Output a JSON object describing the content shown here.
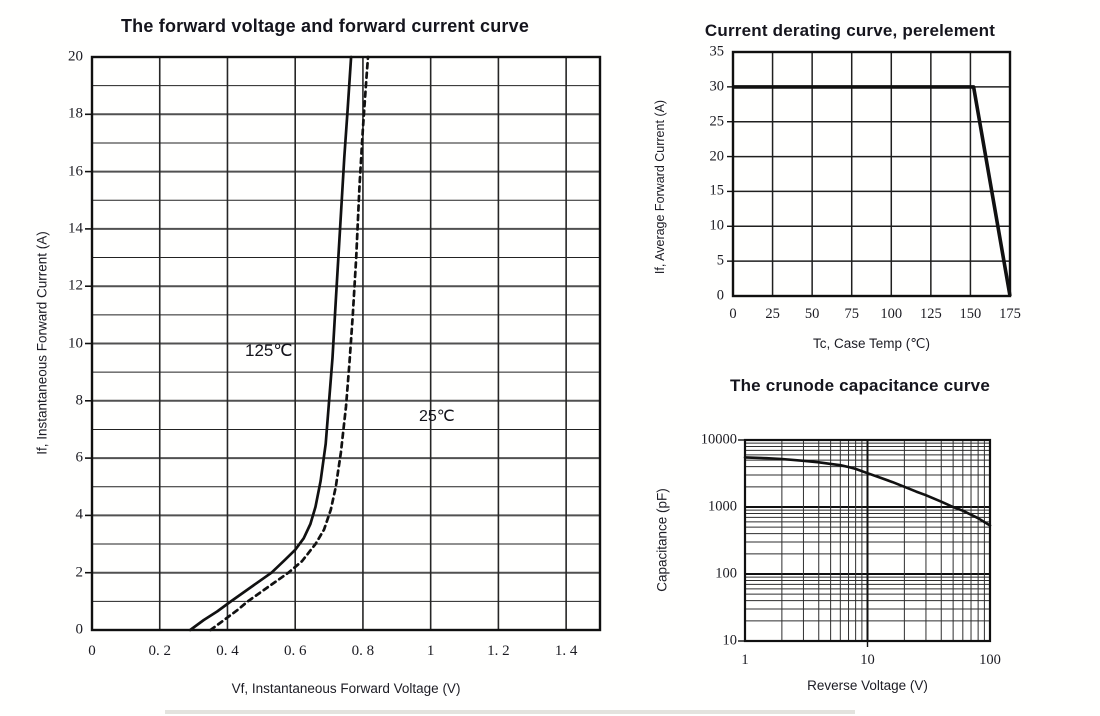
{
  "page": {
    "background": "#ffffff",
    "line_color": "#111111"
  },
  "chart_data": [
    {
      "type": "line",
      "title": "The forward voltage and forward current curve",
      "xlabel": "Vf, Instantaneous Forward Voltage (V)",
      "ylabel": "If, Instantaneous Forward Current (A)",
      "xlim": [
        0,
        1.5
      ],
      "ylim": [
        0,
        20
      ],
      "grid": {
        "x_interval": 0.2,
        "y_minor_interval": 1,
        "y_major_interval": 2,
        "grid_on": true
      },
      "x_tick_labels": [
        "0",
        "0. 2",
        "0. 4",
        "0. 6",
        "0. 8",
        "1",
        "1. 2",
        "1. 4"
      ],
      "y_tick_labels": [
        "0",
        "2",
        "4",
        "6",
        "8",
        "10",
        "12",
        "14",
        "16",
        "18",
        "20"
      ],
      "series": [
        {
          "name": "125℃",
          "line_style": "solid",
          "color": "#111111",
          "points": [
            [
              0.29,
              0
            ],
            [
              0.33,
              0.35
            ],
            [
              0.37,
              0.65
            ],
            [
              0.41,
              1.0
            ],
            [
              0.47,
              1.5
            ],
            [
              0.53,
              2.0
            ],
            [
              0.57,
              2.45
            ],
            [
              0.6,
              2.8
            ],
            [
              0.625,
              3.2
            ],
            [
              0.645,
              3.7
            ],
            [
              0.66,
              4.3
            ],
            [
              0.675,
              5.2
            ],
            [
              0.69,
              6.5
            ],
            [
              0.7,
              8.0
            ],
            [
              0.71,
              9.5
            ],
            [
              0.72,
              11.5
            ],
            [
              0.73,
              13.5
            ],
            [
              0.745,
              16.5
            ],
            [
              0.755,
              18.2
            ],
            [
              0.765,
              20
            ]
          ]
        },
        {
          "name": "25℃",
          "line_style": "dashed",
          "color": "#111111",
          "points": [
            [
              0.35,
              0
            ],
            [
              0.39,
              0.35
            ],
            [
              0.43,
              0.7
            ],
            [
              0.46,
              1.0
            ],
            [
              0.52,
              1.5
            ],
            [
              0.58,
              2.0
            ],
            [
              0.62,
              2.4
            ],
            [
              0.66,
              3.0
            ],
            [
              0.685,
              3.5
            ],
            [
              0.705,
              4.2
            ],
            [
              0.72,
              5.0
            ],
            [
              0.735,
              6.2
            ],
            [
              0.75,
              7.8
            ],
            [
              0.76,
              9.3
            ],
            [
              0.77,
              11.0
            ],
            [
              0.78,
              13.0
            ],
            [
              0.79,
              15.5
            ],
            [
              0.8,
              17.5
            ],
            [
              0.81,
              19.2
            ],
            [
              0.815,
              20
            ]
          ]
        }
      ],
      "annotations": [
        {
          "text": "125℃",
          "x": 0.53,
          "y": 9.7
        },
        {
          "text": "25℃",
          "x": 1.02,
          "y": 7.4
        }
      ]
    },
    {
      "type": "line",
      "title": "Current derating curve, perelement",
      "xlabel": "Tc, Case Temp (℃)",
      "ylabel": "If, Average Forward Current (A)",
      "xlim": [
        0,
        175
      ],
      "ylim": [
        0,
        35
      ],
      "grid": {
        "x_interval": 25,
        "y_interval": 5,
        "grid_on": true
      },
      "x_tick_labels": [
        "0",
        "25",
        "50",
        "75",
        "100",
        "125",
        "150",
        "175"
      ],
      "y_tick_labels": [
        "0",
        "5",
        "10",
        "15",
        "20",
        "25",
        "30",
        "35"
      ],
      "series": [
        {
          "name": "derating",
          "line_style": "solid",
          "color": "#111111",
          "points": [
            [
              0,
              30
            ],
            [
              152,
              30
            ],
            [
              175,
              0
            ]
          ]
        }
      ]
    },
    {
      "type": "line",
      "title": "The crunode capacitance curve",
      "xlabel": "Reverse Voltage (V)",
      "ylabel": "Capacitance (pF)",
      "xscale": "log",
      "yscale": "log",
      "xlim": [
        1,
        100
      ],
      "ylim": [
        10,
        10000
      ],
      "grid": {
        "log_minor_lines": true,
        "grid_on": true
      },
      "x_tick_labels": [
        "1",
        "10",
        "100"
      ],
      "y_tick_labels": [
        "10",
        "100",
        "1000",
        "10000"
      ],
      "series": [
        {
          "name": "capacitance",
          "line_style": "solid",
          "color": "#111111",
          "points": [
            [
              1,
              5500
            ],
            [
              1.5,
              5350
            ],
            [
              2,
              5200
            ],
            [
              3,
              4900
            ],
            [
              4,
              4650
            ],
            [
              5,
              4400
            ],
            [
              6,
              4200
            ],
            [
              7,
              3950
            ],
            [
              8,
              3700
            ],
            [
              10,
              3200
            ],
            [
              13,
              2700
            ],
            [
              16,
              2350
            ],
            [
              20,
              2000
            ],
            [
              25,
              1700
            ],
            [
              30,
              1500
            ],
            [
              40,
              1200
            ],
            [
              50,
              1000
            ],
            [
              60,
              880
            ],
            [
              80,
              680
            ],
            [
              100,
              530
            ]
          ]
        }
      ]
    }
  ]
}
